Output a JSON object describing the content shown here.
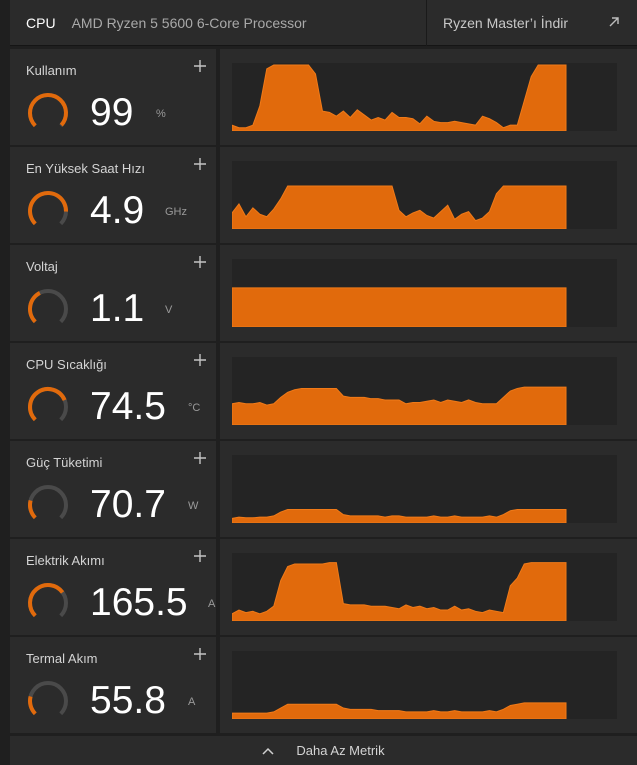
{
  "header": {
    "tab": "CPU",
    "processor": "AMD Ryzen 5 5600 6-Core Processor",
    "download_link": "Ryzen Master’ı İndir",
    "arrow_icon": "external-link-arrow-icon"
  },
  "accent_color": "#e16a0c",
  "metrics": [
    {
      "label": "Kullanım",
      "value": "99",
      "unit": "%",
      "gauge_fraction": 0.99,
      "chart": {
        "type": "area",
        "ylim": [
          0,
          1
        ],
        "values": [
          0.06,
          0.02,
          0.02,
          0.06,
          0.36,
          0.94,
          1.0,
          1.0,
          1.0,
          1.0,
          1.0,
          1.0,
          0.86,
          0.28,
          0.26,
          0.2,
          0.28,
          0.18,
          0.3,
          0.22,
          0.14,
          0.18,
          0.14,
          0.26,
          0.18,
          0.18,
          0.16,
          0.08,
          0.2,
          0.12,
          0.1,
          0.1,
          0.12,
          0.1,
          0.08,
          0.06,
          0.2,
          0.16,
          0.1,
          0.02,
          0.06,
          0.06,
          0.44,
          0.82,
          1.0,
          1.0,
          1.0,
          1.0,
          1.0
        ]
      }
    },
    {
      "label": "En Yüksek Saat Hızı",
      "value": "4.9",
      "unit": "GHz",
      "gauge_fraction": 0.84,
      "chart": {
        "type": "area",
        "ylim": [
          0,
          1
        ],
        "values": [
          0.22,
          0.36,
          0.16,
          0.3,
          0.2,
          0.16,
          0.28,
          0.44,
          0.64,
          0.64,
          0.64,
          0.64,
          0.64,
          0.64,
          0.64,
          0.64,
          0.64,
          0.64,
          0.64,
          0.64,
          0.64,
          0.64,
          0.64,
          0.64,
          0.26,
          0.16,
          0.22,
          0.26,
          0.18,
          0.14,
          0.24,
          0.34,
          0.12,
          0.2,
          0.24,
          0.1,
          0.14,
          0.24,
          0.52,
          0.64,
          0.64,
          0.64,
          0.64,
          0.64,
          0.64,
          0.64,
          0.64,
          0.64,
          0.64
        ]
      }
    },
    {
      "label": "Voltaj",
      "value": "1.1",
      "unit": "V",
      "gauge_fraction": 0.4,
      "chart": {
        "type": "area",
        "ylim": [
          0,
          1
        ],
        "values": [
          0.58,
          0.58,
          0.58,
          0.58,
          0.58,
          0.58,
          0.58,
          0.58,
          0.58,
          0.58,
          0.58,
          0.58,
          0.58,
          0.58,
          0.58,
          0.58,
          0.58,
          0.58,
          0.58,
          0.58,
          0.58,
          0.58,
          0.58,
          0.58,
          0.58,
          0.58,
          0.58,
          0.58,
          0.58,
          0.58,
          0.58,
          0.58,
          0.58,
          0.58,
          0.58,
          0.58,
          0.58,
          0.58,
          0.58,
          0.58,
          0.58,
          0.58,
          0.58,
          0.58,
          0.58,
          0.58,
          0.58,
          0.58,
          0.58
        ]
      }
    },
    {
      "label": "CPU Sıcaklığı",
      "value": "74.5",
      "unit": "°C",
      "gauge_fraction": 0.75,
      "chart": {
        "type": "area",
        "ylim": [
          0,
          1
        ],
        "values": [
          0.3,
          0.32,
          0.3,
          0.3,
          0.32,
          0.28,
          0.3,
          0.4,
          0.48,
          0.52,
          0.54,
          0.54,
          0.54,
          0.54,
          0.54,
          0.54,
          0.42,
          0.4,
          0.4,
          0.4,
          0.38,
          0.38,
          0.36,
          0.36,
          0.36,
          0.3,
          0.32,
          0.32,
          0.34,
          0.36,
          0.32,
          0.36,
          0.34,
          0.32,
          0.36,
          0.32,
          0.3,
          0.3,
          0.3,
          0.4,
          0.5,
          0.54,
          0.56,
          0.56,
          0.56,
          0.56,
          0.56,
          0.56,
          0.56
        ]
      }
    },
    {
      "label": "Güç Tüketimi",
      "value": "70.7",
      "unit": "W",
      "gauge_fraction": 0.22,
      "chart": {
        "type": "area",
        "ylim": [
          0,
          1
        ],
        "values": [
          0.04,
          0.06,
          0.05,
          0.05,
          0.06,
          0.06,
          0.08,
          0.14,
          0.18,
          0.18,
          0.18,
          0.18,
          0.18,
          0.18,
          0.18,
          0.18,
          0.1,
          0.08,
          0.08,
          0.08,
          0.08,
          0.08,
          0.06,
          0.08,
          0.08,
          0.06,
          0.06,
          0.06,
          0.06,
          0.08,
          0.06,
          0.06,
          0.08,
          0.06,
          0.06,
          0.06,
          0.06,
          0.08,
          0.06,
          0.1,
          0.16,
          0.18,
          0.18,
          0.18,
          0.18,
          0.18,
          0.18,
          0.18,
          0.18
        ]
      }
    },
    {
      "label": "Elektrik Akımı",
      "value": "165.5",
      "unit": "A",
      "gauge_fraction": 0.7,
      "chart": {
        "type": "area",
        "ylim": [
          0,
          1
        ],
        "values": [
          0.08,
          0.14,
          0.1,
          0.12,
          0.08,
          0.12,
          0.2,
          0.6,
          0.82,
          0.86,
          0.86,
          0.86,
          0.86,
          0.86,
          0.88,
          0.88,
          0.24,
          0.22,
          0.22,
          0.22,
          0.2,
          0.2,
          0.2,
          0.18,
          0.16,
          0.22,
          0.18,
          0.2,
          0.16,
          0.18,
          0.14,
          0.14,
          0.2,
          0.14,
          0.16,
          0.12,
          0.1,
          0.14,
          0.12,
          0.1,
          0.52,
          0.64,
          0.86,
          0.88,
          0.88,
          0.88,
          0.88,
          0.88,
          0.88
        ]
      }
    },
    {
      "label": "Termal Akım",
      "value": "55.8",
      "unit": "A",
      "gauge_fraction": 0.22,
      "chart": {
        "type": "area",
        "ylim": [
          0,
          1
        ],
        "values": [
          0.06,
          0.06,
          0.06,
          0.06,
          0.06,
          0.06,
          0.08,
          0.14,
          0.2,
          0.2,
          0.2,
          0.2,
          0.2,
          0.2,
          0.2,
          0.2,
          0.14,
          0.12,
          0.12,
          0.12,
          0.12,
          0.1,
          0.1,
          0.1,
          0.1,
          0.08,
          0.08,
          0.08,
          0.08,
          0.1,
          0.08,
          0.08,
          0.1,
          0.08,
          0.08,
          0.08,
          0.08,
          0.1,
          0.08,
          0.12,
          0.18,
          0.2,
          0.22,
          0.22,
          0.22,
          0.22,
          0.22,
          0.22,
          0.22
        ]
      }
    }
  ],
  "footer": {
    "label": "Daha Az Metrik",
    "icon": "chevron-up-icon"
  }
}
